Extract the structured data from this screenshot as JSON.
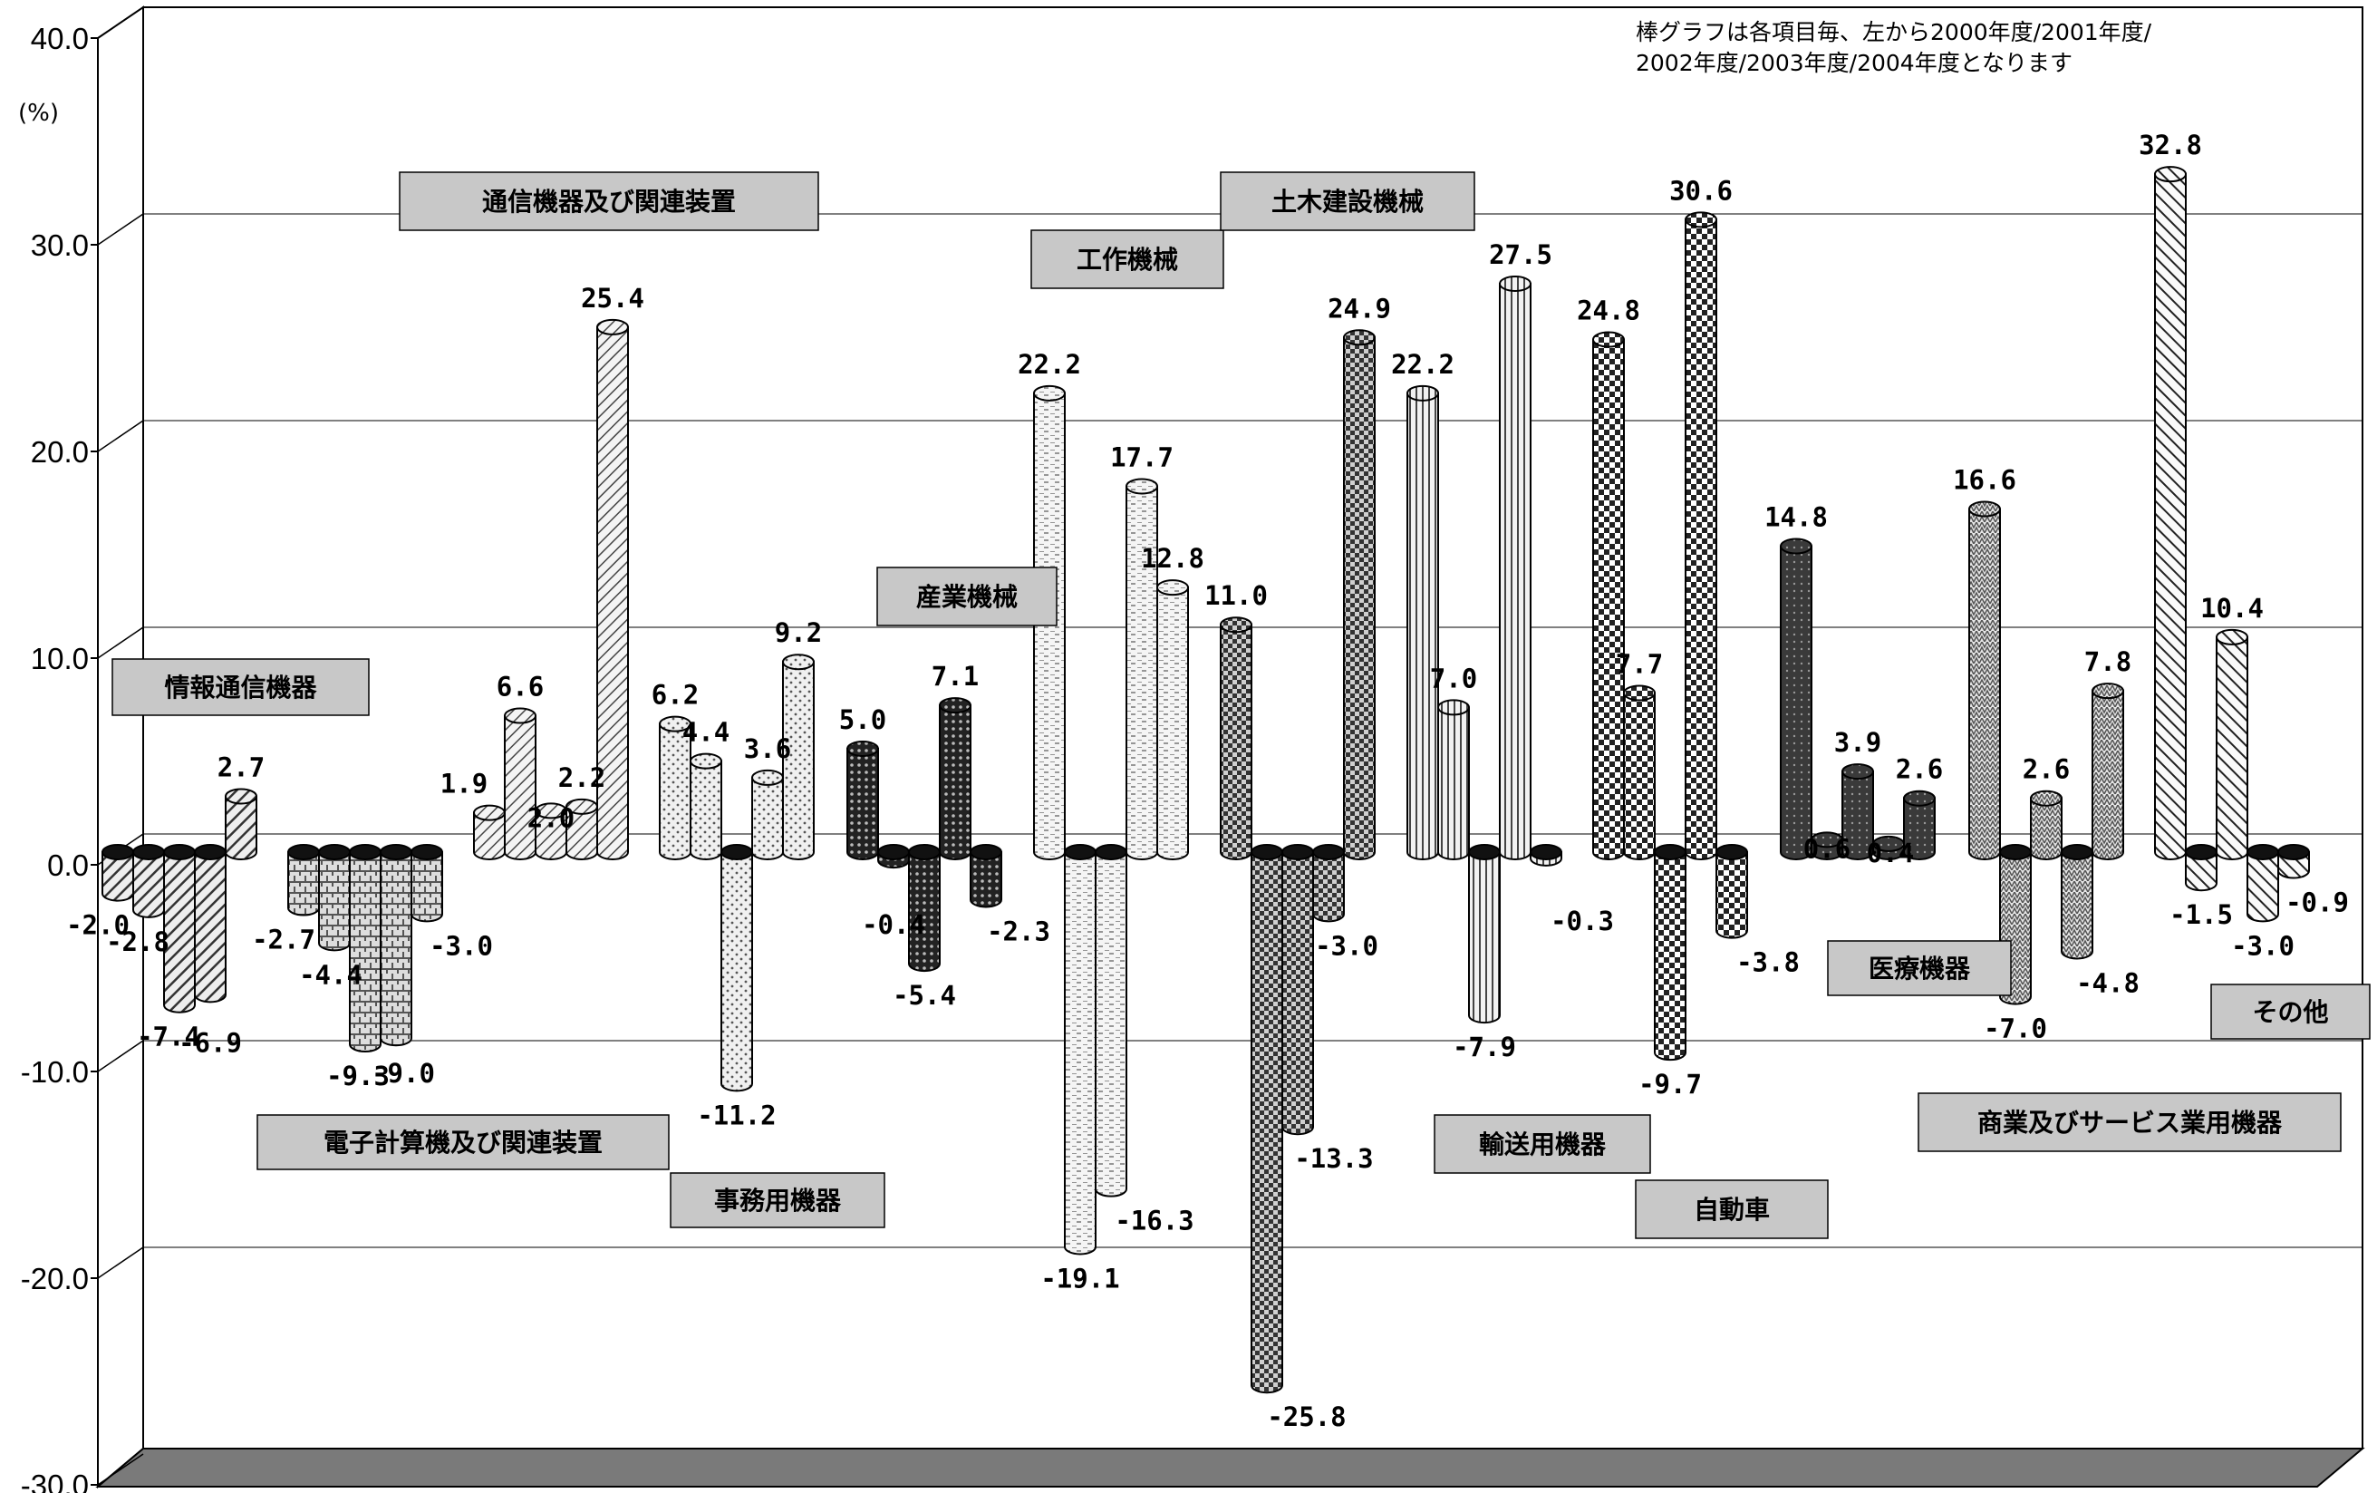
{
  "chart_data": {
    "type": "bar",
    "title": "",
    "ylabel": "(%)",
    "xlabel": "",
    "ylim": [
      -30,
      40
    ],
    "yticks": [
      "40.0",
      "30.0",
      "20.0",
      "10.0",
      "0.0",
      "-10.0",
      "-20.0",
      "-30.0"
    ],
    "grid": true,
    "note_lines": [
      "棒グラフは各項目毎、左から2000年度/2001年度/",
      "2002年度/2003年度/2004年度となります"
    ],
    "categories": [
      "情報通信機器",
      "電子計算機及び関連装置",
      "通信機器及び関連装置",
      "事務用機器",
      "産業機械",
      "工作機械",
      "土木建設機械",
      "輸送用機器",
      "自動車",
      "医療機器",
      "商業及びサービス業用機器",
      "その他"
    ],
    "series_years": [
      "2000年度",
      "2001年度",
      "2002年度",
      "2003年度",
      "2004年度"
    ],
    "values": [
      [
        -2.0,
        -2.8,
        -7.4,
        -6.9,
        2.7
      ],
      [
        -2.7,
        -4.4,
        -9.3,
        -9.0,
        -3.0
      ],
      [
        1.9,
        6.6,
        2.0,
        2.2,
        25.4
      ],
      [
        6.2,
        4.4,
        -11.2,
        3.6,
        9.2
      ],
      [
        5.0,
        -0.4,
        -5.4,
        7.1,
        -2.3
      ],
      [
        22.2,
        -19.1,
        -16.3,
        17.7,
        12.8
      ],
      [
        11.0,
        -25.8,
        -13.3,
        -3.0,
        24.9
      ],
      [
        22.2,
        7.0,
        -7.9,
        27.5,
        -0.3
      ],
      [
        24.8,
        7.7,
        -9.7,
        30.6,
        -3.8
      ],
      [
        14.8,
        0.6,
        3.9,
        0.4,
        2.6
      ],
      [
        16.6,
        -7.0,
        2.6,
        -4.8,
        7.8
      ],
      [
        32.8,
        -1.5,
        10.4,
        -3.0,
        -0.9
      ]
    ],
    "value_labels": [
      [
        "-2.0",
        "-2.8",
        "-7.4",
        "-6.9",
        "2.7"
      ],
      [
        "-2.7",
        "-4.4",
        "-9.3",
        "-9.0",
        "-3.0"
      ],
      [
        "1.9",
        "6.6",
        "2.0",
        "2.2",
        "25.4"
      ],
      [
        "6.2",
        "4.4",
        "-11.2",
        "3.6",
        "9.2"
      ],
      [
        "5.0",
        "-0.4",
        "-5.4",
        "7.1",
        "-2.3"
      ],
      [
        "22.2",
        "-19.1",
        "-16.3",
        "17.7",
        "12.8"
      ],
      [
        "11.0",
        "-25.8",
        "-13.3",
        "-3.0",
        "24.9"
      ],
      [
        "22.2",
        "7.0",
        "-7.9",
        "27.5",
        "-0.3"
      ],
      [
        "24.8",
        "7.7",
        "-9.7",
        "30.6",
        "-3.8"
      ],
      [
        "14.8",
        "0.6",
        "3.9",
        "0.4",
        "2.6"
      ],
      [
        "16.6",
        "-7.0",
        "2.6",
        "-4.8",
        "7.8"
      ],
      [
        "32.8",
        "-1.5",
        "10.4",
        "-3.0",
        "-0.9"
      ]
    ]
  }
}
